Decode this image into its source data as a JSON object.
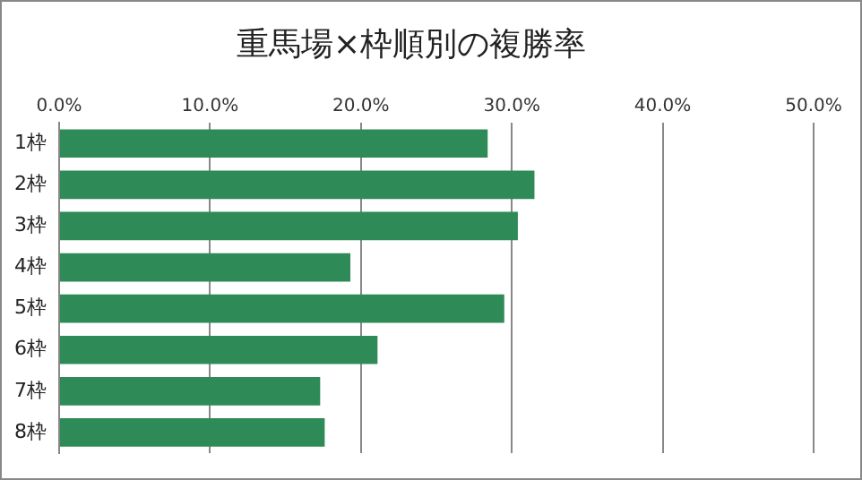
{
  "chart_data": {
    "type": "bar",
    "orientation": "horizontal",
    "title": "重馬場×枠順別の複勝率",
    "categories": [
      "1枠",
      "2枠",
      "3枠",
      "4枠",
      "5枠",
      "6枠",
      "7枠",
      "8枠"
    ],
    "values": [
      28.4,
      31.5,
      30.4,
      19.3,
      29.5,
      21.1,
      17.3,
      17.6
    ],
    "color": "#2e8b57",
    "xlim": [
      0,
      50
    ],
    "xticks": [
      {
        "value": 0,
        "label": "0.0%"
      },
      {
        "value": 10,
        "label": "10.0%"
      },
      {
        "value": 20,
        "label": "20.0%"
      },
      {
        "value": 30,
        "label": "30.0%"
      },
      {
        "value": 40,
        "label": "40.0%"
      },
      {
        "value": 50,
        "label": "50.0%"
      }
    ],
    "grid": "x",
    "legend": false
  }
}
